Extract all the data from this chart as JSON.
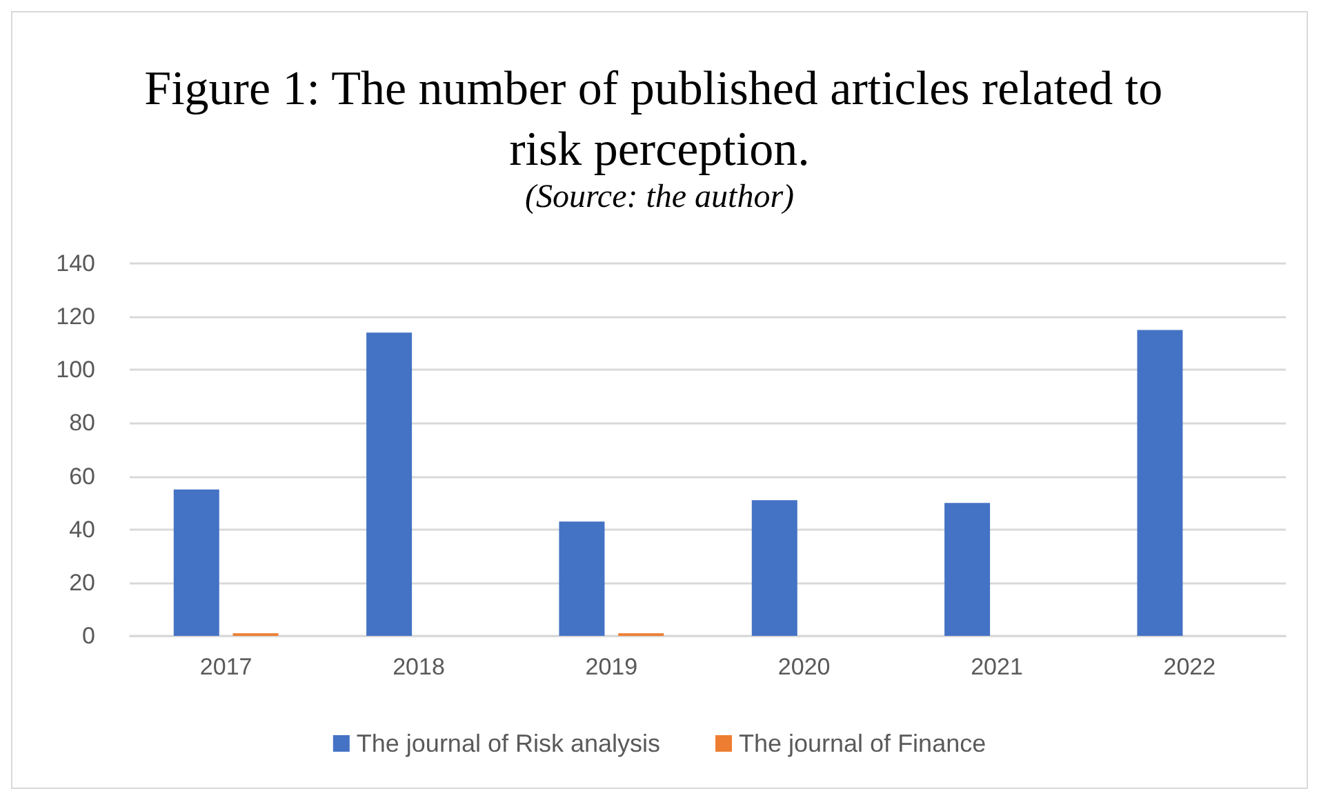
{
  "chart_data": {
    "type": "bar",
    "title": "Figure 1: The number of published articles related to risk perception.",
    "subtitle": "(Source: the author)",
    "categories": [
      "2017",
      "2018",
      "2019",
      "2020",
      "2021",
      "2022"
    ],
    "series": [
      {
        "name": "The journal of Risk analysis",
        "color": "#4472c4",
        "values": [
          55,
          114,
          43,
          51,
          50,
          115
        ]
      },
      {
        "name": "The journal of Finance",
        "color": "#ed7d31",
        "values": [
          1,
          0,
          1,
          0,
          0,
          0
        ]
      }
    ],
    "ylim": [
      0,
      140
    ],
    "yticks": [
      0,
      20,
      40,
      60,
      80,
      100,
      120,
      140
    ],
    "grid": "y",
    "legend": "bottom"
  }
}
